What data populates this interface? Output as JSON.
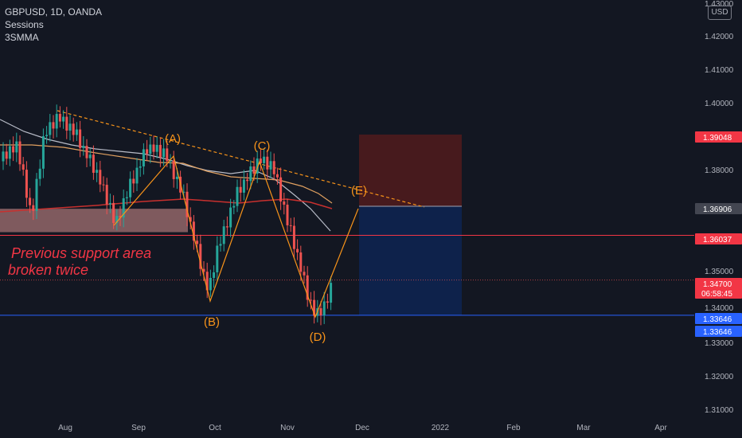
{
  "legend": {
    "symbol": "GBPUSD, 1D, OANDA",
    "indicator1": "Sessions",
    "indicator2": "3SMMA"
  },
  "currency": "USD",
  "colors": {
    "background": "#131722",
    "up": "#26a69a",
    "down": "#ef5350",
    "wave": "#f7931a",
    "redLine": "#f23645",
    "blueLine": "#2962ff"
  },
  "chart_data": {
    "type": "candlestick",
    "y_ticks": [
      "1.43000",
      "1.42000",
      "1.41000",
      "1.40000",
      "1.38000",
      "1.35000",
      "1.34000",
      "1.33000",
      "1.32000",
      "1.31000"
    ],
    "x_ticks": [
      "Aug",
      "Sep",
      "Oct",
      "Nov",
      "Dec",
      "2022",
      "Feb",
      "Mar",
      "Apr"
    ],
    "wave_labels": [
      {
        "label": "(A)",
        "price": 1.3885
      },
      {
        "label": "(B)",
        "price": 1.3415
      },
      {
        "label": "(C)",
        "price": 1.3835
      },
      {
        "label": "(D)",
        "price": 1.3358
      },
      {
        "label": "(E)",
        "price": 1.372
      }
    ],
    "annotation": [
      "Previous support area",
      "broken twice"
    ],
    "price_tags": [
      {
        "value": "1.39048",
        "kind": "stop"
      },
      {
        "value": "1.36906",
        "kind": "entry"
      },
      {
        "value": "1.36037",
        "kind": "support"
      },
      {
        "value": "1.34700",
        "kind": "last",
        "countdown": "06:58:45"
      },
      {
        "value": "1.33646",
        "kind": "target"
      },
      {
        "value": "1.33646",
        "kind": "target"
      }
    ],
    "position": {
      "stop": 1.39048,
      "entry": 1.36906,
      "target": 1.33646
    },
    "support_zone": [
      1.3613,
      1.3683
    ]
  }
}
